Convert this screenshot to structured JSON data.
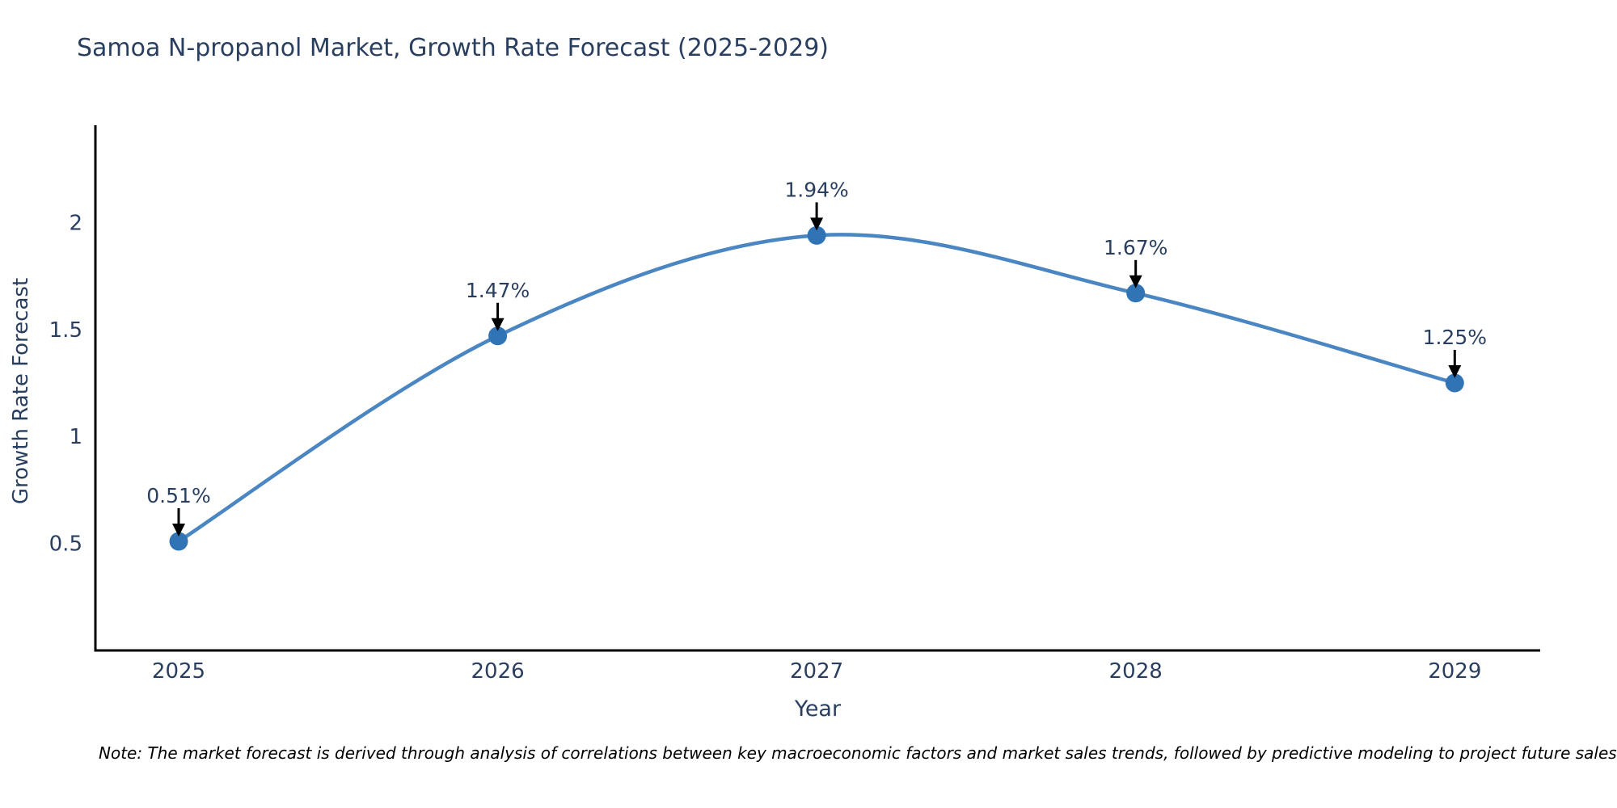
{
  "note": "Note: The market forecast is derived through analysis of correlations between key macroeconomic factors and market sales trends, followed by predictive modeling to project future sales",
  "chart_data": {
    "type": "line",
    "title": "Samoa N-propanol Market, Growth Rate Forecast (2025-2029)",
    "xlabel": "Year",
    "ylabel": "Growth Rate Forecast",
    "x": [
      2025,
      2026,
      2027,
      2028,
      2029
    ],
    "values": [
      0.51,
      1.47,
      1.94,
      1.67,
      1.25
    ],
    "point_labels": [
      "0.51%",
      "1.47%",
      "1.94%",
      "1.67%",
      "1.25%"
    ],
    "xtick_labels": [
      "2025",
      "2026",
      "2027",
      "2028",
      "2029"
    ],
    "yticks": [
      0.5,
      1,
      1.5,
      2
    ],
    "ytick_labels": [
      "0.5",
      "1",
      "1.5",
      "2"
    ],
    "xlim": [
      2024.739,
      2029.268
    ],
    "ylim": [
      0,
      2.455
    ],
    "line_shape": "spline",
    "grid": false,
    "legend": "none",
    "colors": {
      "line": "#4a86c2",
      "marker": "#3174b6",
      "axis": "#000000",
      "text": "#2a3f5f",
      "annotation_arrow": "#000000"
    }
  }
}
